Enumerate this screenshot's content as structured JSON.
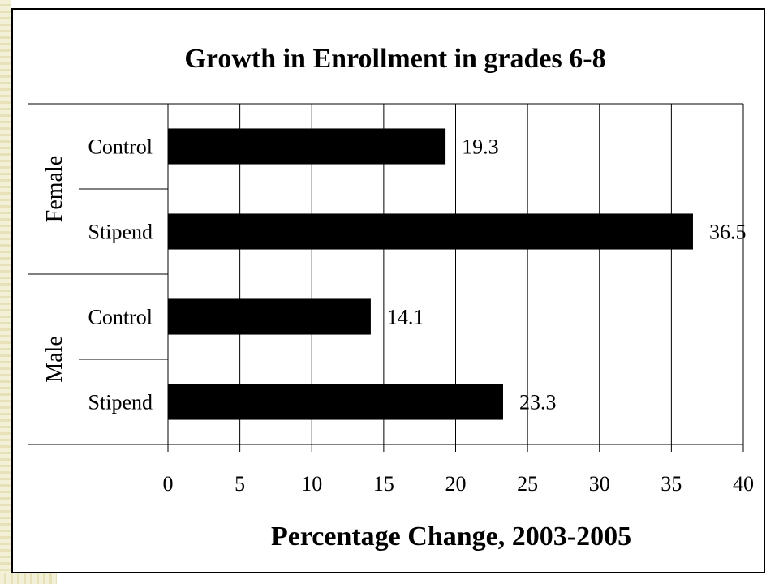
{
  "chart_data": {
    "type": "bar",
    "orientation": "horizontal",
    "title": "Growth in Enrollment in grades 6-8",
    "xlabel": "Percentage Change, 2003-2005",
    "xlim": [
      0,
      40
    ],
    "xticks": [
      "0",
      "5",
      "10",
      "15",
      "20",
      "25",
      "30",
      "35",
      "40"
    ],
    "grid": "vertical",
    "bar_color": "#000000",
    "groups": [
      {
        "name": "Female",
        "items": [
          {
            "category": "Control",
            "value": 19.3,
            "label": "19.3"
          },
          {
            "category": "Stipend",
            "value": 36.5,
            "label": "36.5"
          }
        ]
      },
      {
        "name": "Male",
        "items": [
          {
            "category": "Control",
            "value": 14.1,
            "label": "14.1"
          },
          {
            "category": "Stipend",
            "value": 23.3,
            "label": "23.3"
          }
        ]
      }
    ]
  }
}
